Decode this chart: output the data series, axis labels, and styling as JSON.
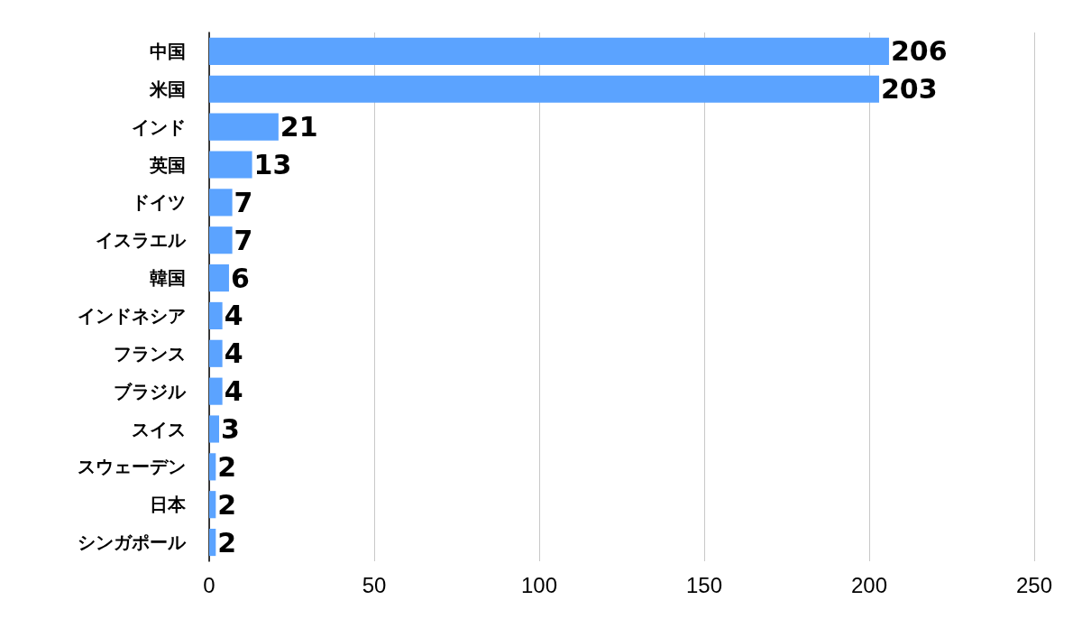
{
  "chart_data": {
    "type": "bar",
    "orientation": "horizontal",
    "categories": [
      "中国",
      "米国",
      "インド",
      "英国",
      "ドイツ",
      "イスラエル",
      "韓国",
      "インドネシア",
      "フランス",
      "ブラジル",
      "スイス",
      "スウェーデン",
      "日本",
      "シンガポール"
    ],
    "values": [
      206,
      203,
      21,
      13,
      7,
      7,
      6,
      4,
      4,
      4,
      3,
      2,
      2,
      2
    ],
    "color": "#5ba3ff",
    "xlim": [
      0,
      250
    ],
    "xticks": [
      0,
      50,
      100,
      150,
      200,
      250
    ],
    "grid": "x",
    "data_labels": true
  }
}
